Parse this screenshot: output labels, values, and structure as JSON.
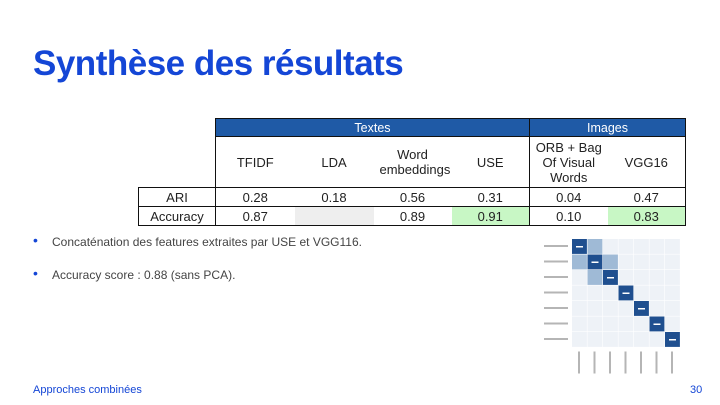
{
  "slide": {
    "title": "Synthèse des résultats",
    "footer_left": "Approches combinées",
    "page_number": "30"
  },
  "table": {
    "groups": [
      {
        "label": "Textes",
        "span": 4
      },
      {
        "label": "Images",
        "span": 2
      }
    ],
    "columns": [
      "TFIDF",
      "LDA",
      "Word embeddings",
      "USE",
      "ORB + Bag Of Visual Words",
      "VGG16"
    ],
    "rows": [
      {
        "label": "ARI",
        "values": [
          "0.28",
          "0.18",
          "0.56",
          "0.31",
          "0.04",
          "0.47"
        ]
      },
      {
        "label": "Accuracy",
        "values": [
          "0.87",
          "",
          "0.89",
          "0.91",
          "0.10",
          "0.83"
        ]
      }
    ],
    "highlight_color": "#c8f7c5",
    "empty_cell_color": "#eeeeee",
    "header_color": "#1f5aa6"
  },
  "bullets": [
    "Concaténation des features extraites par USE et VGG116.",
    "Accuracy score : 0.88 (sans PCA)."
  ],
  "confusion_matrix": {
    "size": 7,
    "diagonal_values": [
      "100",
      "100",
      "100",
      "100",
      "100",
      "100",
      "100"
    ]
  }
}
